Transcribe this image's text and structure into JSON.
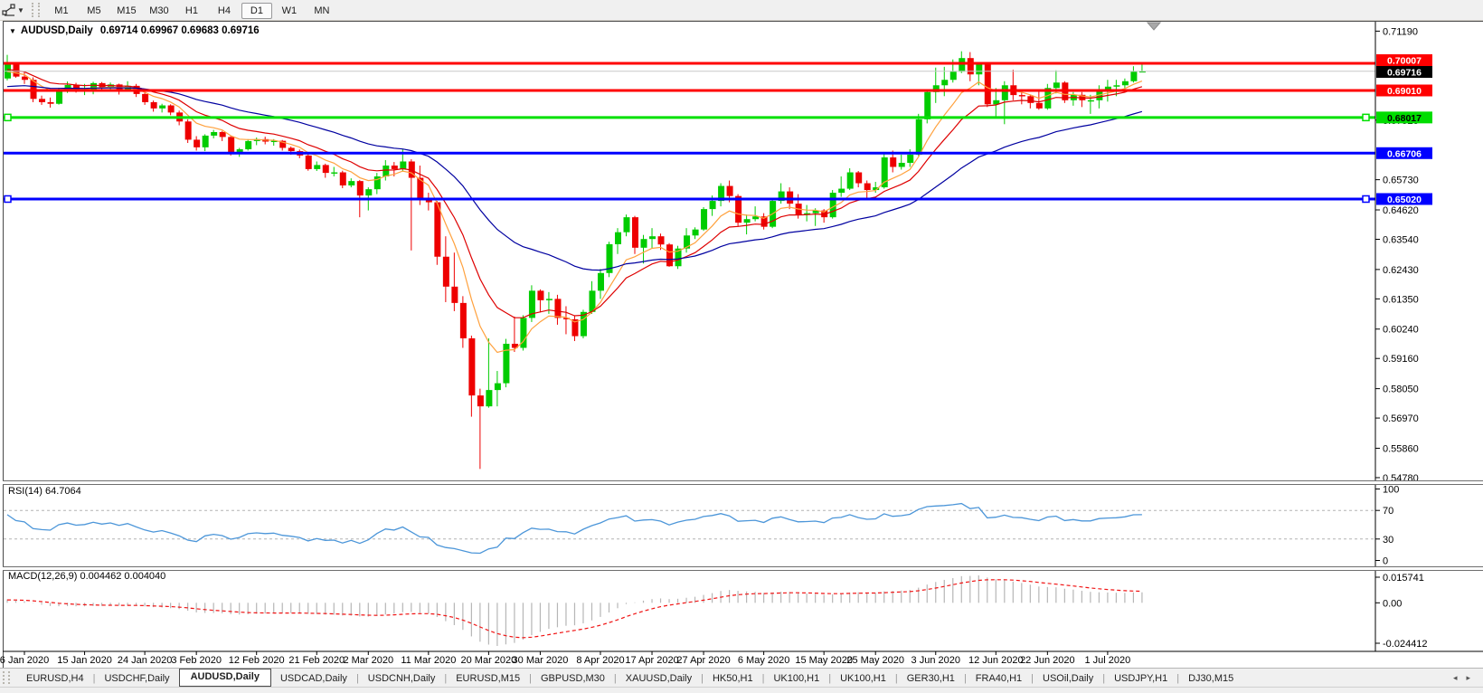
{
  "toolbar": {
    "timeframes": [
      "M1",
      "M5",
      "M15",
      "M30",
      "H1",
      "H4",
      "D1",
      "W1",
      "MN"
    ],
    "active_timeframe": "D1",
    "tool_icon": "crosshair-cursor-tool",
    "dropdown_glyph": "▼"
  },
  "title": {
    "dropdown_glyph": "▼",
    "symbol": "AUDUSD,Daily",
    "ohlc": "0.69714 0.69967 0.69683 0.69716"
  },
  "price_axis": {
    "ticks": [
      "0.71190",
      "0.67920",
      "0.65730",
      "0.64620",
      "0.63540",
      "0.62430",
      "0.61350",
      "0.60240",
      "0.59160",
      "0.58050",
      "0.56970",
      "0.55860",
      "0.54780"
    ],
    "badges": [
      {
        "text": "0.70007",
        "bg": "#ff0000",
        "fg": "#ffffff"
      },
      {
        "text": "0.69716",
        "bg": "#000000",
        "fg": "#ffffff"
      },
      {
        "text": "0.69010",
        "bg": "#ff0000",
        "fg": "#ffffff"
      },
      {
        "text": "0.68017",
        "bg": "#00dd00",
        "fg": "#000000"
      },
      {
        "text": "0.66706",
        "bg": "#0000ff",
        "fg": "#ffffff"
      },
      {
        "text": "0.65020",
        "bg": "#0000ff",
        "fg": "#ffffff"
      }
    ]
  },
  "hlines": [
    {
      "price": 0.70007,
      "color": "#ff0000",
      "width": 3,
      "handles": false
    },
    {
      "price": 0.6901,
      "color": "#ff0000",
      "width": 3,
      "handles": false
    },
    {
      "price": 0.68017,
      "color": "#00e000",
      "width": 3,
      "handles": true
    },
    {
      "price": 0.66706,
      "color": "#0000ff",
      "width": 3,
      "handles": false
    },
    {
      "price": 0.6502,
      "color": "#0000ff",
      "width": 3,
      "handles": true
    },
    {
      "price": 0.69716,
      "color": "#c8c8c8",
      "width": 1,
      "handles": false
    }
  ],
  "rsi": {
    "label": "RSI(14) 64.7064",
    "value": "64.7064",
    "scale_labels": [
      "100",
      "70",
      "30",
      "0"
    ],
    "levels": [
      100,
      70,
      30,
      0
    ],
    "color": "#4c96d9"
  },
  "macd": {
    "label": "MACD(12,26,9) 0.004462 0.004040",
    "main_value": "0.004462",
    "signal_value": "0.004040",
    "scale_labels": [
      "0.015741",
      "0.00",
      "-0.024412"
    ],
    "hist_color": "#b6b6b6",
    "signal_color": "#f01414"
  },
  "tabs": {
    "items": [
      "EURUSD,H4",
      "USDCHF,Daily",
      "AUDUSD,Daily",
      "USDCAD,Daily",
      "USDCNH,Daily",
      "EURUSD,M15",
      "GBPUSD,M30",
      "XAUUSD,Daily",
      "HK50,H1",
      "UK100,H1",
      "UK100,H1",
      "GER30,H1",
      "FRA40,H1",
      "USOil,Daily",
      "USDJPY,H1",
      "DJ30,M15"
    ],
    "active_index": 2,
    "scroll_left": "◂",
    "scroll_right": "▸"
  },
  "chart_data": {
    "type": "candlestick",
    "symbol": "AUDUSD",
    "timeframe": "Daily",
    "bull_color": "#00cc00",
    "bear_color": "#ee0000",
    "x_labels": [
      {
        "i": 2,
        "t": "6 Jan 2020"
      },
      {
        "i": 9,
        "t": "15 Jan 2020"
      },
      {
        "i": 16,
        "t": "24 Jan 2020"
      },
      {
        "i": 22,
        "t": "3 Feb 2020"
      },
      {
        "i": 29,
        "t": "12 Feb 2020"
      },
      {
        "i": 36,
        "t": "21 Feb 2020"
      },
      {
        "i": 42,
        "t": "2 Mar 2020"
      },
      {
        "i": 49,
        "t": "11 Mar 2020"
      },
      {
        "i": 56,
        "t": "20 Mar 2020"
      },
      {
        "i": 62,
        "t": "30 Mar 2020"
      },
      {
        "i": 69,
        "t": "8 Apr 2020"
      },
      {
        "i": 75,
        "t": "17 Apr 2020"
      },
      {
        "i": 81,
        "t": "27 Apr 2020"
      },
      {
        "i": 88,
        "t": "6 May 2020"
      },
      {
        "i": 95,
        "t": "15 May 2020"
      },
      {
        "i": 101,
        "t": "25 May 2020"
      },
      {
        "i": 108,
        "t": "3 Jun 2020"
      },
      {
        "i": 115,
        "t": "12 Jun 2020"
      },
      {
        "i": 121,
        "t": "22 Jun 2020"
      },
      {
        "i": 128,
        "t": "1 Jul 2020"
      }
    ],
    "moving_averages": [
      {
        "name": "fast-ma",
        "color": "#ffa13d",
        "period": 7,
        "init": 0.696
      },
      {
        "name": "mid-ma",
        "color": "#de0000",
        "period": 13,
        "init": 0.6975
      },
      {
        "name": "slow-ma",
        "color": "#0000a0",
        "period": 34,
        "init": 0.691
      }
    ],
    "candles": [
      [
        0.6945,
        0.7032,
        0.6938,
        0.7
      ],
      [
        0.7,
        0.7005,
        0.6948,
        0.6952
      ],
      [
        0.6952,
        0.6968,
        0.6925,
        0.694
      ],
      [
        0.694,
        0.6949,
        0.6858,
        0.687
      ],
      [
        0.687,
        0.6882,
        0.6848,
        0.6858
      ],
      [
        0.6858,
        0.6875,
        0.6838,
        0.6852
      ],
      [
        0.6852,
        0.6911,
        0.6849,
        0.6903
      ],
      [
        0.6903,
        0.6934,
        0.6892,
        0.6921
      ],
      [
        0.6921,
        0.6929,
        0.6893,
        0.69
      ],
      [
        0.69,
        0.6925,
        0.6884,
        0.6906
      ],
      [
        0.6906,
        0.6933,
        0.6887,
        0.6928
      ],
      [
        0.6928,
        0.6932,
        0.69,
        0.6912
      ],
      [
        0.6912,
        0.693,
        0.6899,
        0.6923
      ],
      [
        0.6923,
        0.6926,
        0.6886,
        0.6902
      ],
      [
        0.6902,
        0.6935,
        0.6896,
        0.6918
      ],
      [
        0.6918,
        0.6925,
        0.6877,
        0.6888
      ],
      [
        0.6888,
        0.6898,
        0.6848,
        0.6858
      ],
      [
        0.6858,
        0.6864,
        0.6823,
        0.6835
      ],
      [
        0.6835,
        0.6852,
        0.682,
        0.6846
      ],
      [
        0.6846,
        0.685,
        0.681,
        0.682
      ],
      [
        0.682,
        0.6827,
        0.6773,
        0.6787
      ],
      [
        0.6787,
        0.6795,
        0.6708,
        0.672
      ],
      [
        0.672,
        0.6733,
        0.668,
        0.6692
      ],
      [
        0.6692,
        0.674,
        0.6678,
        0.6735
      ],
      [
        0.6735,
        0.6756,
        0.6725,
        0.6748
      ],
      [
        0.6748,
        0.6752,
        0.6715,
        0.673
      ],
      [
        0.673,
        0.6735,
        0.6662,
        0.6672
      ],
      [
        0.6672,
        0.669,
        0.6657,
        0.6685
      ],
      [
        0.6685,
        0.6722,
        0.668,
        0.6715
      ],
      [
        0.6715,
        0.6728,
        0.67,
        0.6722
      ],
      [
        0.6722,
        0.6731,
        0.6703,
        0.6713
      ],
      [
        0.6713,
        0.6722,
        0.6698,
        0.6716
      ],
      [
        0.6716,
        0.6719,
        0.668,
        0.669
      ],
      [
        0.669,
        0.6695,
        0.6665,
        0.6678
      ],
      [
        0.6678,
        0.6684,
        0.6652,
        0.6662
      ],
      [
        0.6662,
        0.6668,
        0.6606,
        0.6612
      ],
      [
        0.6612,
        0.664,
        0.6605,
        0.6627
      ],
      [
        0.6627,
        0.6632,
        0.658,
        0.6598
      ],
      [
        0.6598,
        0.662,
        0.6585,
        0.66
      ],
      [
        0.66,
        0.6606,
        0.6542,
        0.6552
      ],
      [
        0.6552,
        0.6578,
        0.6545,
        0.6568
      ],
      [
        0.6568,
        0.6572,
        0.6435,
        0.6515
      ],
      [
        0.6515,
        0.6545,
        0.646,
        0.6538
      ],
      [
        0.6538,
        0.6598,
        0.652,
        0.6585
      ],
      [
        0.6585,
        0.6645,
        0.657,
        0.6625
      ],
      [
        0.6625,
        0.6638,
        0.6585,
        0.6612
      ],
      [
        0.6612,
        0.6686,
        0.6605,
        0.664
      ],
      [
        0.664,
        0.6648,
        0.6313,
        0.658
      ],
      [
        0.658,
        0.6625,
        0.648,
        0.65
      ],
      [
        0.65,
        0.6525,
        0.646,
        0.649
      ],
      [
        0.649,
        0.6495,
        0.626,
        0.629
      ],
      [
        0.629,
        0.6365,
        0.6123,
        0.618
      ],
      [
        0.618,
        0.6305,
        0.609,
        0.612
      ],
      [
        0.612,
        0.6145,
        0.5955,
        0.599
      ],
      [
        0.599,
        0.6,
        0.5702,
        0.578
      ],
      [
        0.578,
        0.5805,
        0.551,
        0.574
      ],
      [
        0.574,
        0.599,
        0.5735,
        0.58
      ],
      [
        0.58,
        0.587,
        0.574,
        0.5825
      ],
      [
        0.5825,
        0.5988,
        0.581,
        0.597
      ],
      [
        0.597,
        0.607,
        0.594,
        0.5955
      ],
      [
        0.5955,
        0.6075,
        0.5945,
        0.6065
      ],
      [
        0.6065,
        0.6185,
        0.605,
        0.6165
      ],
      [
        0.6165,
        0.617,
        0.6085,
        0.613
      ],
      [
        0.613,
        0.616,
        0.608,
        0.6135
      ],
      [
        0.6135,
        0.615,
        0.604,
        0.6065
      ],
      [
        0.6065,
        0.6108,
        0.6005,
        0.606
      ],
      [
        0.606,
        0.6072,
        0.598,
        0.5998
      ],
      [
        0.5998,
        0.6095,
        0.599,
        0.6087
      ],
      [
        0.6087,
        0.62,
        0.608,
        0.6165
      ],
      [
        0.6165,
        0.6245,
        0.6135,
        0.623
      ],
      [
        0.623,
        0.6345,
        0.6215,
        0.6336
      ],
      [
        0.6336,
        0.6395,
        0.63,
        0.638
      ],
      [
        0.638,
        0.6445,
        0.6365,
        0.6435
      ],
      [
        0.6435,
        0.644,
        0.63,
        0.6323
      ],
      [
        0.6323,
        0.637,
        0.6265,
        0.6355
      ],
      [
        0.6355,
        0.6395,
        0.632,
        0.6365
      ],
      [
        0.6365,
        0.6375,
        0.6315,
        0.6335
      ],
      [
        0.6335,
        0.634,
        0.6253,
        0.6255
      ],
      [
        0.6255,
        0.633,
        0.6245,
        0.632
      ],
      [
        0.632,
        0.6395,
        0.6305,
        0.6368
      ],
      [
        0.6368,
        0.6398,
        0.6355,
        0.639
      ],
      [
        0.639,
        0.6472,
        0.6385,
        0.6465
      ],
      [
        0.6465,
        0.6515,
        0.644,
        0.6495
      ],
      [
        0.6495,
        0.656,
        0.6475,
        0.655
      ],
      [
        0.655,
        0.657,
        0.649,
        0.6513
      ],
      [
        0.6513,
        0.652,
        0.64,
        0.6415
      ],
      [
        0.6415,
        0.6445,
        0.6372,
        0.6428
      ],
      [
        0.6428,
        0.6475,
        0.642,
        0.6438
      ],
      [
        0.6438,
        0.645,
        0.639,
        0.64
      ],
      [
        0.64,
        0.65,
        0.6395,
        0.6495
      ],
      [
        0.6495,
        0.656,
        0.6485,
        0.653
      ],
      [
        0.653,
        0.6545,
        0.6465,
        0.6485
      ],
      [
        0.6485,
        0.652,
        0.643,
        0.6445
      ],
      [
        0.6445,
        0.648,
        0.642,
        0.645
      ],
      [
        0.645,
        0.6468,
        0.6403,
        0.646
      ],
      [
        0.646,
        0.6465,
        0.6415,
        0.6435
      ],
      [
        0.6435,
        0.6535,
        0.643,
        0.6525
      ],
      [
        0.6525,
        0.6585,
        0.651,
        0.654
      ],
      [
        0.654,
        0.6615,
        0.6535,
        0.66
      ],
      [
        0.66,
        0.6605,
        0.6545,
        0.656
      ],
      [
        0.656,
        0.657,
        0.6505,
        0.6535
      ],
      [
        0.6535,
        0.6565,
        0.6525,
        0.6545
      ],
      [
        0.6545,
        0.6675,
        0.654,
        0.6655
      ],
      [
        0.6655,
        0.668,
        0.66,
        0.662
      ],
      [
        0.662,
        0.6665,
        0.661,
        0.6635
      ],
      [
        0.6635,
        0.6685,
        0.662,
        0.6665
      ],
      [
        0.6665,
        0.6815,
        0.666,
        0.6795
      ],
      [
        0.6795,
        0.69,
        0.678,
        0.6895
      ],
      [
        0.6895,
        0.6985,
        0.6855,
        0.692
      ],
      [
        0.692,
        0.6988,
        0.688,
        0.694
      ],
      [
        0.694,
        0.7015,
        0.693,
        0.697
      ],
      [
        0.697,
        0.7045,
        0.6965,
        0.702
      ],
      [
        0.702,
        0.7042,
        0.6935,
        0.696
      ],
      [
        0.696,
        0.7005,
        0.692,
        0.7
      ],
      [
        0.7,
        0.7005,
        0.684,
        0.685
      ],
      [
        0.685,
        0.691,
        0.68,
        0.6865
      ],
      [
        0.6865,
        0.6935,
        0.6777,
        0.692
      ],
      [
        0.692,
        0.6977,
        0.6865,
        0.6884
      ],
      [
        0.6884,
        0.6905,
        0.685,
        0.688
      ],
      [
        0.688,
        0.6885,
        0.6835,
        0.6855
      ],
      [
        0.6855,
        0.6905,
        0.683,
        0.6835
      ],
      [
        0.6835,
        0.6925,
        0.683,
        0.691
      ],
      [
        0.691,
        0.6975,
        0.689,
        0.693
      ],
      [
        0.693,
        0.6935,
        0.6855,
        0.6865
      ],
      [
        0.6865,
        0.6895,
        0.6845,
        0.6885
      ],
      [
        0.6885,
        0.6895,
        0.684,
        0.6865
      ],
      [
        0.6865,
        0.6885,
        0.6815,
        0.6865
      ],
      [
        0.6865,
        0.692,
        0.6835,
        0.6905
      ],
      [
        0.6905,
        0.694,
        0.686,
        0.6915
      ],
      [
        0.6915,
        0.694,
        0.688,
        0.692
      ],
      [
        0.692,
        0.6945,
        0.69,
        0.6935
      ],
      [
        0.6935,
        0.699,
        0.693,
        0.697
      ],
      [
        0.69714,
        0.69967,
        0.69683,
        0.69716
      ]
    ]
  }
}
